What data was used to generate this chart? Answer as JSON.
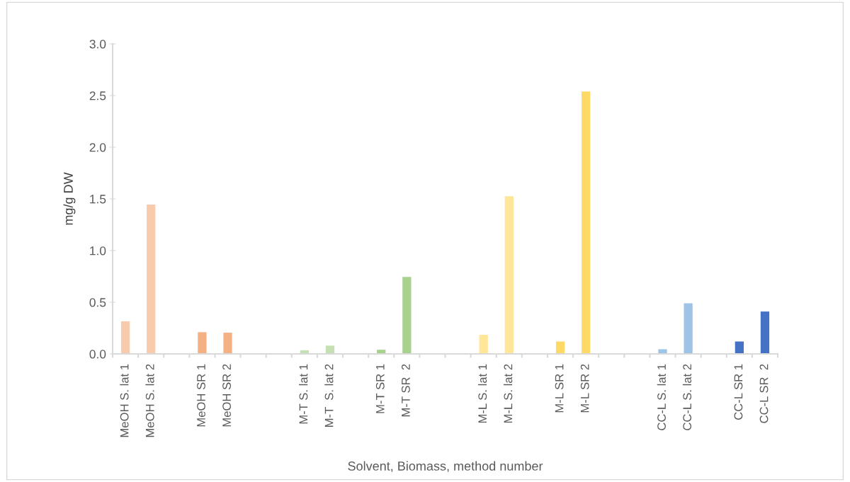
{
  "chart_data": {
    "type": "bar",
    "xlabel": "Solvent, Biomass, method number",
    "ylabel": "mg/g DW",
    "categories": [
      "MeOH S. lat 1",
      "MeOH S. lat 2",
      null,
      "MeOH SR 1",
      "MeOH SR 2",
      null,
      null,
      "M-T S. lat 1",
      "M-T  S. lat 2",
      null,
      "M-T SR 1",
      "M-T SR  2",
      null,
      null,
      "M-L S. lat 1",
      "M-L S. lat 2",
      null,
      "M-L SR 1",
      "M-L SR 2",
      null,
      null,
      "CC-L S. lat 1",
      "CC-L S. lat 2",
      null,
      "CC-L SR 1",
      "CC-L SR  2"
    ],
    "values": [
      0.315,
      1.445,
      null,
      0.21,
      0.205,
      null,
      null,
      0.035,
      0.08,
      null,
      0.04,
      0.745,
      null,
      null,
      0.185,
      1.525,
      null,
      0.12,
      2.54,
      null,
      null,
      0.045,
      0.49,
      null,
      0.12,
      0.41
    ],
    "colors": [
      "#f8cbad",
      "#f8cbad",
      null,
      "#f4b183",
      "#f4b183",
      null,
      null,
      "#c5e0b4",
      "#c5e0b4",
      null,
      "#a9d18e",
      "#a9d18e",
      null,
      null,
      "#ffe699",
      "#ffe699",
      null,
      "#ffd966",
      "#ffd966",
      null,
      null,
      "#9dc3e6",
      "#9dc3e6",
      null,
      "#4472c4",
      "#4472c4"
    ],
    "ylim": [
      0,
      3.0
    ],
    "yticks": [
      {
        "value": 0,
        "label": "0.0"
      },
      {
        "value": 0.5,
        "label": "0.5"
      },
      {
        "value": 1,
        "label": "1.0"
      },
      {
        "value": 1.5,
        "label": "1.5"
      },
      {
        "value": 2,
        "label": "2.0"
      },
      {
        "value": 2.5,
        "label": "2.5"
      },
      {
        "value": 3,
        "label": "3.0"
      }
    ],
    "grid": false,
    "legend": false
  }
}
